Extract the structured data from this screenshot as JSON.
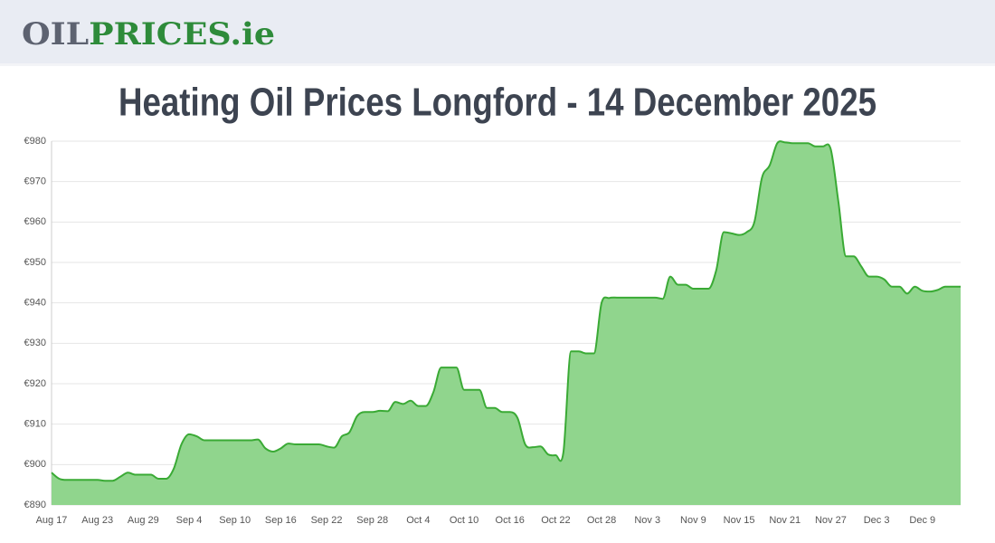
{
  "header": {
    "logo_dark": "OIL",
    "logo_green": "PRICES.ie"
  },
  "chart_data": {
    "type": "area",
    "title": "Heating Oil Prices Longford - 14 December 2025",
    "categories": [
      "Aug 17",
      null,
      null,
      null,
      null,
      null,
      "Aug 23",
      null,
      null,
      null,
      null,
      null,
      "Aug 29",
      null,
      null,
      null,
      null,
      null,
      "Sep 4",
      null,
      null,
      null,
      null,
      null,
      "Sep 10",
      null,
      null,
      null,
      null,
      null,
      "Sep 16",
      null,
      null,
      null,
      null,
      null,
      "Sep 22",
      null,
      null,
      null,
      null,
      null,
      "Sep 28",
      null,
      null,
      null,
      null,
      null,
      "Oct 4",
      null,
      null,
      null,
      null,
      null,
      "Oct 10",
      null,
      null,
      null,
      null,
      null,
      "Oct 16",
      null,
      null,
      null,
      null,
      null,
      "Oct 22",
      null,
      null,
      null,
      null,
      null,
      "Oct 28",
      null,
      null,
      null,
      null,
      null,
      "Nov 3",
      null,
      null,
      null,
      null,
      null,
      "Nov 9",
      null,
      null,
      null,
      null,
      null,
      "Nov 15",
      null,
      null,
      null,
      null,
      null,
      "Nov 21",
      null,
      null,
      null,
      null,
      null,
      "Nov 27",
      null,
      null,
      null,
      null,
      null,
      "Dec 3",
      null,
      null,
      null,
      null,
      null,
      "Dec 9",
      null,
      null,
      null,
      null,
      null
    ],
    "values": [
      898,
      896.5,
      896.2,
      896.2,
      896.2,
      896.2,
      896.2,
      896,
      896,
      897,
      898,
      897.5,
      897.5,
      897.5,
      896.5,
      896.5,
      899,
      905,
      907.5,
      907,
      906,
      906,
      906,
      906,
      906,
      906,
      906,
      906.2,
      904,
      903.2,
      904,
      905.2,
      905,
      905,
      905,
      905,
      904.5,
      904.2,
      907,
      908,
      912,
      913,
      913,
      913.3,
      913.2,
      915.5,
      915,
      915.8,
      914.5,
      914.5,
      918,
      924,
      924,
      924,
      918.5,
      918.5,
      918.5,
      914,
      914,
      913,
      913,
      911.5,
      905,
      904.3,
      904.5,
      902.5,
      902.3,
      903,
      928,
      928,
      927.5,
      927.5,
      940,
      941.2,
      941.3,
      941.3,
      941.3,
      941.3,
      941.3,
      941.3,
      941,
      946.5,
      944.5,
      944.5,
      943.5,
      943.5,
      943.5,
      948,
      957.5,
      957.2,
      956.8,
      957.5,
      960,
      971,
      974,
      979.5,
      979.7,
      979.5,
      979.5,
      979.5,
      978.7,
      978.7,
      978,
      965,
      951.5,
      951.5,
      949,
      946.5,
      946.5,
      945.8,
      944,
      944,
      942.3,
      944,
      943,
      942.8,
      943.2,
      944,
      944,
      944
    ],
    "color": "#3aaa35",
    "fill_color": "#90d58d",
    "ylim": [
      890,
      980
    ],
    "yticks": [
      {
        "value": 890,
        "label": "€890"
      },
      {
        "value": 900,
        "label": "€900"
      },
      {
        "value": 910,
        "label": "€910"
      },
      {
        "value": 920,
        "label": "€920"
      },
      {
        "value": 930,
        "label": "€930"
      },
      {
        "value": 940,
        "label": "€940"
      },
      {
        "value": 950,
        "label": "€950"
      },
      {
        "value": 960,
        "label": "€960"
      },
      {
        "value": 970,
        "label": "€970"
      },
      {
        "value": 980,
        "label": "€980"
      }
    ],
    "grid": true
  }
}
